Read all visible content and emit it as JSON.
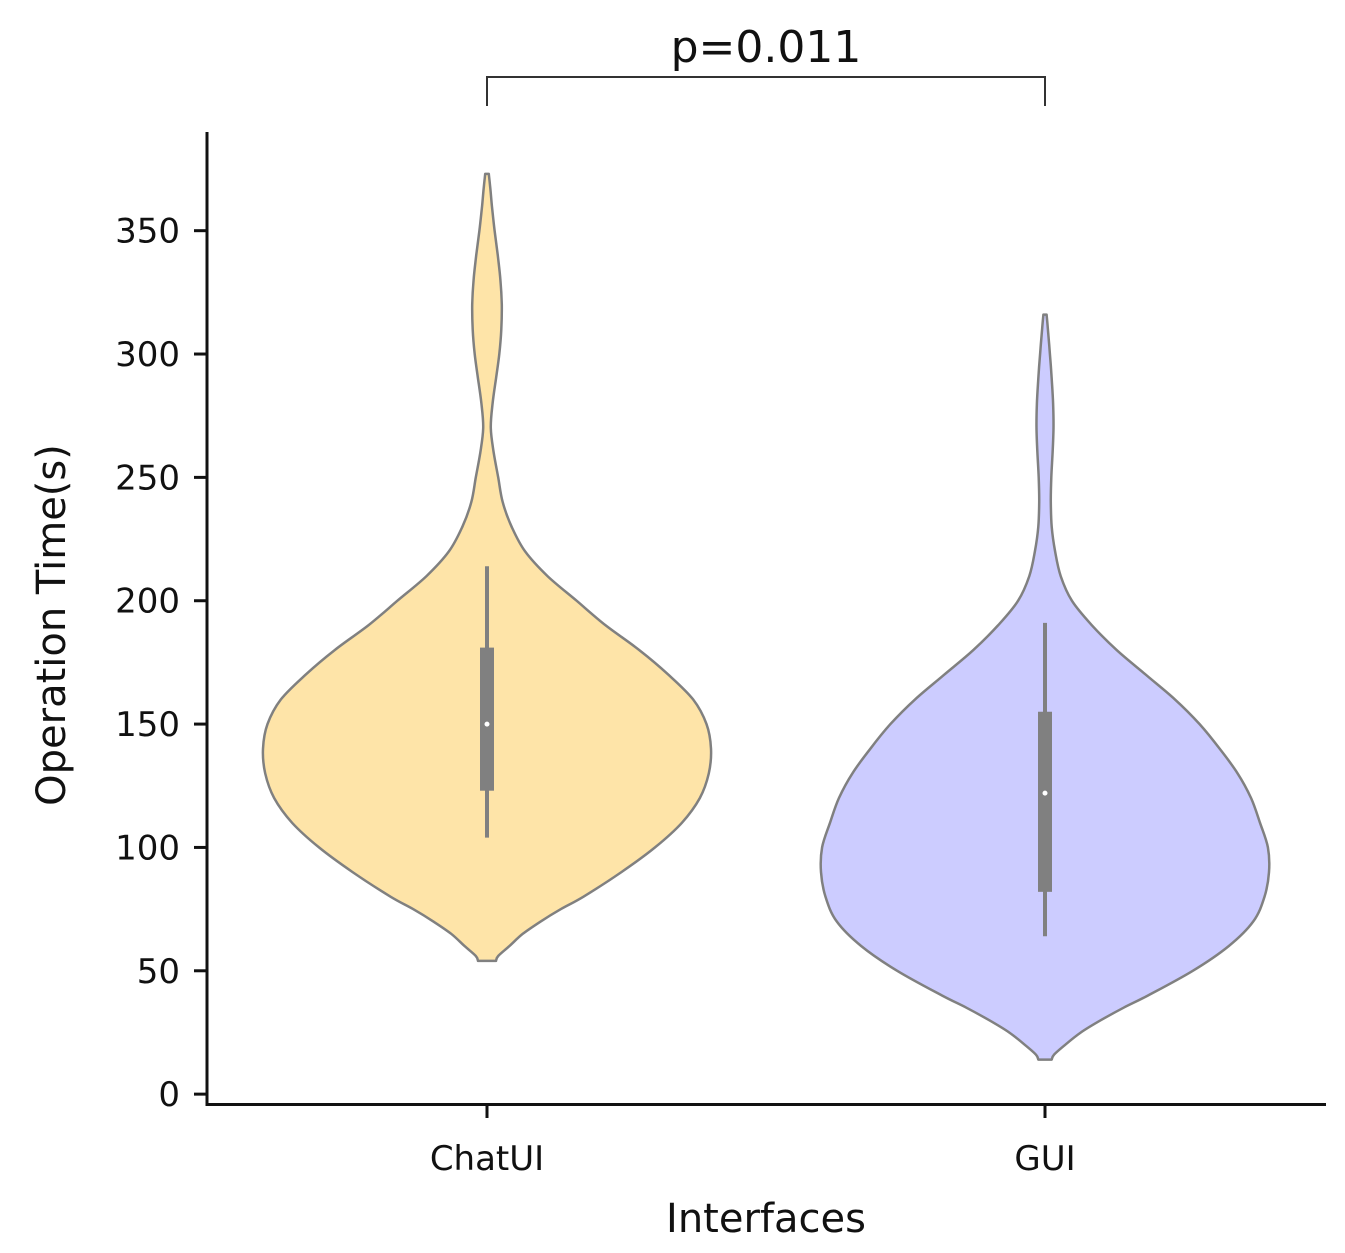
{
  "chart_data": {
    "type": "violin",
    "xlabel": "Interfaces",
    "ylabel": "Operation Time(s)",
    "ylim": [
      -4,
      390
    ],
    "yticks": [
      0,
      50,
      100,
      150,
      200,
      250,
      300,
      350
    ],
    "categories": [
      "ChatUI",
      "GUI"
    ],
    "grid": false,
    "legend": "none",
    "series": [
      {
        "category": "ChatUI",
        "color": "#fee4a8",
        "median": 150,
        "q1": 123,
        "q3": 181,
        "whisker_low": 104,
        "whisker_high": 214,
        "density_min": 54,
        "density_max": 373,
        "profile": [
          [
            54,
            0.04
          ],
          [
            56,
            0.05
          ],
          [
            60,
            0.1
          ],
          [
            65,
            0.16
          ],
          [
            70,
            0.24
          ],
          [
            75,
            0.33
          ],
          [
            80,
            0.43
          ],
          [
            90,
            0.6
          ],
          [
            100,
            0.75
          ],
          [
            110,
            0.87
          ],
          [
            120,
            0.95
          ],
          [
            130,
            0.99
          ],
          [
            140,
            1.0
          ],
          [
            150,
            0.98
          ],
          [
            160,
            0.92
          ],
          [
            170,
            0.81
          ],
          [
            180,
            0.68
          ],
          [
            190,
            0.53
          ],
          [
            200,
            0.4
          ],
          [
            210,
            0.27
          ],
          [
            220,
            0.17
          ],
          [
            230,
            0.11
          ],
          [
            240,
            0.07
          ],
          [
            250,
            0.05
          ],
          [
            260,
            0.03
          ],
          [
            270,
            0.017
          ],
          [
            280,
            0.025
          ],
          [
            290,
            0.04
          ],
          [
            300,
            0.055
          ],
          [
            310,
            0.064
          ],
          [
            320,
            0.066
          ],
          [
            330,
            0.06
          ],
          [
            340,
            0.048
          ],
          [
            350,
            0.034
          ],
          [
            360,
            0.022
          ],
          [
            368,
            0.014
          ],
          [
            373,
            0.008
          ]
        ]
      },
      {
        "category": "GUI",
        "color": "#ccccff",
        "median": 122,
        "q1": 82,
        "q3": 155,
        "whisker_low": 64,
        "whisker_high": 191,
        "density_min": 14,
        "density_max": 316,
        "profile": [
          [
            14,
            0.03
          ],
          [
            16,
            0.04
          ],
          [
            20,
            0.09
          ],
          [
            25,
            0.16
          ],
          [
            30,
            0.25
          ],
          [
            35,
            0.35
          ],
          [
            40,
            0.46
          ],
          [
            50,
            0.66
          ],
          [
            60,
            0.82
          ],
          [
            70,
            0.93
          ],
          [
            80,
            0.98
          ],
          [
            90,
            1.0
          ],
          [
            100,
            0.995
          ],
          [
            110,
            0.96
          ],
          [
            120,
            0.92
          ],
          [
            130,
            0.86
          ],
          [
            140,
            0.78
          ],
          [
            150,
            0.69
          ],
          [
            160,
            0.58
          ],
          [
            170,
            0.45
          ],
          [
            180,
            0.32
          ],
          [
            190,
            0.21
          ],
          [
            200,
            0.12
          ],
          [
            210,
            0.07
          ],
          [
            220,
            0.045
          ],
          [
            230,
            0.03
          ],
          [
            240,
            0.026
          ],
          [
            250,
            0.028
          ],
          [
            260,
            0.034
          ],
          [
            270,
            0.038
          ],
          [
            280,
            0.036
          ],
          [
            290,
            0.03
          ],
          [
            300,
            0.022
          ],
          [
            310,
            0.013
          ],
          [
            316,
            0.007
          ]
        ]
      }
    ],
    "annotations": [
      {
        "text": "p=0.011",
        "between": [
          "ChatUI",
          "GUI"
        ]
      }
    ]
  }
}
